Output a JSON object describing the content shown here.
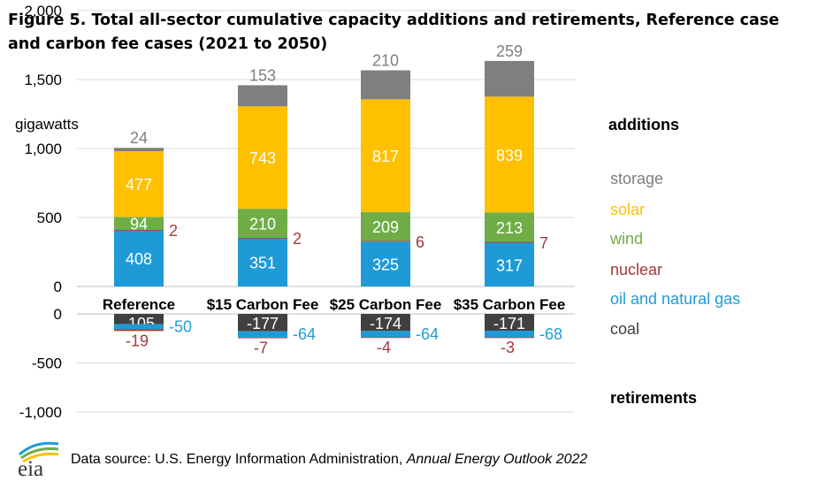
{
  "title": "Figure 5. Total all-sector cumulative capacity additions and retirements, Reference case and carbon fee cases (2021 to 2050)",
  "source": {
    "prefix": "Data source: U.S. Energy Information Administration, ",
    "publication": "Annual Energy Outlook 2022"
  },
  "logo_text": "eia",
  "colors": {
    "storage": "#7f7f7f",
    "solar": "#ffc000",
    "wind": "#70ad47",
    "nuclear": "#a5393a",
    "oil_gas": "#1e9bd7",
    "coal": "#404040",
    "grid": "#d9d9d9"
  },
  "chart_data": [
    {
      "type": "bar",
      "stacked": true,
      "panel": "additions",
      "ylabel": "gigawatts",
      "ylim": [
        0,
        2000
      ],
      "yticks": [
        0,
        500,
        1000,
        1500,
        2000
      ],
      "ytick_labels": [
        "0",
        "500",
        "1,000",
        "1,500",
        "2,000"
      ],
      "categories": [
        "Reference",
        "$15 Carbon Fee",
        "$25 Carbon Fee",
        "$35 Carbon Fee"
      ],
      "series": [
        {
          "name": "oil and natural gas",
          "key": "oil_gas",
          "values": [
            408,
            351,
            325,
            317
          ]
        },
        {
          "name": "nuclear",
          "key": "nuclear",
          "values": [
            2,
            2,
            6,
            7
          ]
        },
        {
          "name": "wind",
          "key": "wind",
          "values": [
            94,
            210,
            209,
            213
          ]
        },
        {
          "name": "solar",
          "key": "solar",
          "values": [
            477,
            743,
            817,
            839
          ]
        },
        {
          "name": "storage",
          "key": "storage",
          "values": [
            24,
            153,
            210,
            259
          ]
        }
      ]
    },
    {
      "type": "bar",
      "stacked": true,
      "panel": "retirements",
      "ylim": [
        -1000,
        0
      ],
      "yticks": [
        0,
        -500,
        -1000
      ],
      "ytick_labels": [
        "0",
        "-500",
        "-1,000"
      ],
      "categories": [
        "Reference",
        "$15 Carbon Fee",
        "$25 Carbon Fee",
        "$35 Carbon Fee"
      ],
      "series": [
        {
          "name": "coal",
          "key": "coal",
          "values": [
            -105,
            -177,
            -174,
            -171
          ]
        },
        {
          "name": "oil and natural gas",
          "key": "oil_gas",
          "values": [
            -50,
            -64,
            -64,
            -68
          ]
        },
        {
          "name": "nuclear",
          "key": "nuclear",
          "values": [
            -19,
            -7,
            -4,
            -3
          ]
        }
      ]
    }
  ],
  "legend": {
    "additions_heading": "additions",
    "retirements_heading": "retirements",
    "items": [
      {
        "label": "storage",
        "key": "storage"
      },
      {
        "label": "solar",
        "key": "solar"
      },
      {
        "label": "wind",
        "key": "wind"
      },
      {
        "label": "nuclear",
        "key": "nuclear"
      },
      {
        "label": "oil and natural gas",
        "key": "oil_gas"
      },
      {
        "label": "coal",
        "key": "coal"
      }
    ]
  }
}
